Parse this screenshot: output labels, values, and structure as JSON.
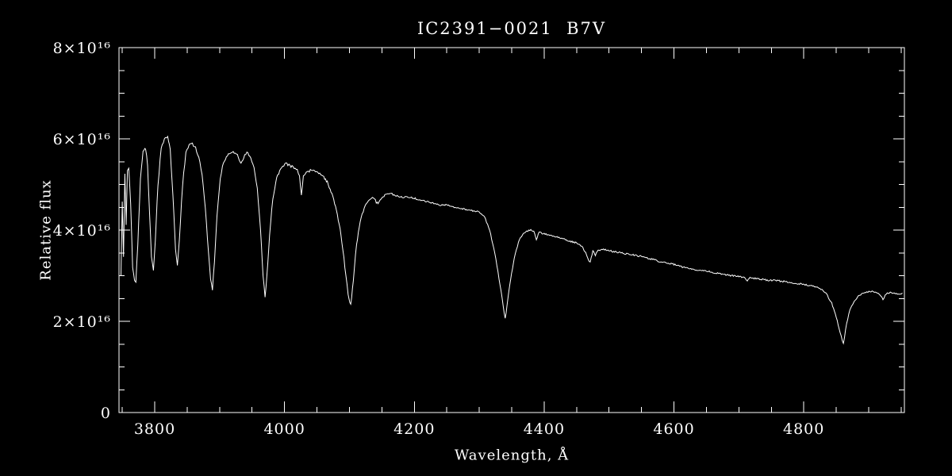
{
  "chart_data": {
    "type": "line",
    "title": "IC2391−0021  B7V",
    "xlabel": "Wavelength, Å",
    "ylabel": "Relative flux",
    "xlim": [
      3745,
      4955
    ],
    "ylim": [
      0,
      8
    ],
    "flux_scale_note": "flux point values are in units of 10^16 (axis shows n×10¹⁶)",
    "x_major_ticks": [
      3800,
      4000,
      4200,
      4400,
      4600,
      4800
    ],
    "x_tick_labels": [
      "3800",
      "4000",
      "4200",
      "4400",
      "4600",
      "4800"
    ],
    "x_minor_step": 50,
    "y_major_ticks": [
      0,
      2,
      4,
      6,
      8
    ],
    "y_tick_labels": [
      "0",
      "2×10¹⁶",
      "4×10¹⁶",
      "6×10¹⁶",
      "8×10¹⁶"
    ],
    "y_minor_step": 0.5,
    "grid": false,
    "legend": null,
    "line_color": "#ffffff",
    "axis_color": "#ffffff",
    "background_color": "#000000",
    "notable_absorption_lines": [
      3771,
      3798,
      3835,
      3889,
      3970,
      4026,
      4102,
      4340,
      4388,
      4471,
      4861,
      4922
    ],
    "points": [
      [
        3748,
        3.0
      ],
      [
        3750,
        4.6
      ],
      [
        3752,
        3.4
      ],
      [
        3754,
        5.25
      ],
      [
        3756,
        4.1
      ],
      [
        3758,
        5.3
      ],
      [
        3760,
        5.35
      ],
      [
        3763,
        4.6
      ],
      [
        3766,
        3.2
      ],
      [
        3769,
        2.9
      ],
      [
        3771,
        2.85
      ],
      [
        3774,
        3.7
      ],
      [
        3778,
        5.1
      ],
      [
        3782,
        5.7
      ],
      [
        3786,
        5.8
      ],
      [
        3789,
        5.45
      ],
      [
        3792,
        4.4
      ],
      [
        3795,
        3.4
      ],
      [
        3798,
        3.1
      ],
      [
        3801,
        3.8
      ],
      [
        3805,
        5.0
      ],
      [
        3810,
        5.8
      ],
      [
        3815,
        6.0
      ],
      [
        3820,
        6.05
      ],
      [
        3824,
        5.75
      ],
      [
        3828,
        4.8
      ],
      [
        3832,
        3.6
      ],
      [
        3835,
        3.2
      ],
      [
        3838,
        3.8
      ],
      [
        3843,
        5.0
      ],
      [
        3848,
        5.7
      ],
      [
        3853,
        5.85
      ],
      [
        3858,
        5.9
      ],
      [
        3863,
        5.8
      ],
      [
        3868,
        5.6
      ],
      [
        3873,
        5.2
      ],
      [
        3878,
        4.5
      ],
      [
        3883,
        3.5
      ],
      [
        3886,
        2.9
      ],
      [
        3889,
        2.7
      ],
      [
        3892,
        3.3
      ],
      [
        3896,
        4.3
      ],
      [
        3901,
        5.15
      ],
      [
        3906,
        5.5
      ],
      [
        3912,
        5.65
      ],
      [
        3918,
        5.7
      ],
      [
        3924,
        5.7
      ],
      [
        3929,
        5.6
      ],
      [
        3933,
        5.45
      ],
      [
        3937,
        5.6
      ],
      [
        3942,
        5.7
      ],
      [
        3948,
        5.6
      ],
      [
        3953,
        5.35
      ],
      [
        3958,
        4.9
      ],
      [
        3963,
        4.0
      ],
      [
        3967,
        3.0
      ],
      [
        3970,
        2.5
      ],
      [
        3973,
        3.0
      ],
      [
        3977,
        3.9
      ],
      [
        3982,
        4.7
      ],
      [
        3988,
        5.15
      ],
      [
        3994,
        5.35
      ],
      [
        4002,
        5.45
      ],
      [
        4010,
        5.4
      ],
      [
        4018,
        5.35
      ],
      [
        4023,
        5.2
      ],
      [
        4026,
        4.75
      ],
      [
        4029,
        5.2
      ],
      [
        4035,
        5.3
      ],
      [
        4043,
        5.3
      ],
      [
        4051,
        5.25
      ],
      [
        4059,
        5.2
      ],
      [
        4066,
        5.05
      ],
      [
        4073,
        4.8
      ],
      [
        4080,
        4.45
      ],
      [
        4087,
        3.9
      ],
      [
        4093,
        3.2
      ],
      [
        4098,
        2.6
      ],
      [
        4102,
        2.35
      ],
      [
        4106,
        2.9
      ],
      [
        4111,
        3.7
      ],
      [
        4118,
        4.3
      ],
      [
        4126,
        4.6
      ],
      [
        4134,
        4.7
      ],
      [
        4140,
        4.65
      ],
      [
        4144,
        4.55
      ],
      [
        4149,
        4.7
      ],
      [
        4156,
        4.78
      ],
      [
        4164,
        4.8
      ],
      [
        4172,
        4.75
      ],
      [
        4180,
        4.72
      ],
      [
        4190,
        4.73
      ],
      [
        4200,
        4.7
      ],
      [
        4210,
        4.65
      ],
      [
        4220,
        4.62
      ],
      [
        4230,
        4.58
      ],
      [
        4240,
        4.55
      ],
      [
        4250,
        4.55
      ],
      [
        4260,
        4.5
      ],
      [
        4270,
        4.48
      ],
      [
        4280,
        4.45
      ],
      [
        4290,
        4.42
      ],
      [
        4300,
        4.4
      ],
      [
        4308,
        4.3
      ],
      [
        4316,
        4.0
      ],
      [
        4324,
        3.5
      ],
      [
        4332,
        2.8
      ],
      [
        4340,
        2.05
      ],
      [
        4347,
        2.8
      ],
      [
        4354,
        3.4
      ],
      [
        4362,
        3.8
      ],
      [
        4370,
        3.95
      ],
      [
        4378,
        4.0
      ],
      [
        4384,
        3.98
      ],
      [
        4388,
        3.78
      ],
      [
        4392,
        3.95
      ],
      [
        4400,
        3.92
      ],
      [
        4410,
        3.88
      ],
      [
        4420,
        3.85
      ],
      [
        4430,
        3.8
      ],
      [
        4440,
        3.75
      ],
      [
        4450,
        3.72
      ],
      [
        4458,
        3.65
      ],
      [
        4464,
        3.5
      ],
      [
        4468,
        3.35
      ],
      [
        4471,
        3.3
      ],
      [
        4475,
        3.55
      ],
      [
        4479,
        3.45
      ],
      [
        4483,
        3.55
      ],
      [
        4490,
        3.58
      ],
      [
        4500,
        3.55
      ],
      [
        4510,
        3.52
      ],
      [
        4520,
        3.5
      ],
      [
        4530,
        3.47
      ],
      [
        4540,
        3.45
      ],
      [
        4550,
        3.42
      ],
      [
        4560,
        3.38
      ],
      [
        4570,
        3.35
      ],
      [
        4580,
        3.3
      ],
      [
        4590,
        3.28
      ],
      [
        4600,
        3.25
      ],
      [
        4610,
        3.2
      ],
      [
        4620,
        3.17
      ],
      [
        4630,
        3.14
      ],
      [
        4640,
        3.12
      ],
      [
        4650,
        3.1
      ],
      [
        4660,
        3.07
      ],
      [
        4670,
        3.04
      ],
      [
        4680,
        3.02
      ],
      [
        4690,
        3.0
      ],
      [
        4700,
        2.98
      ],
      [
        4710,
        2.95
      ],
      [
        4713,
        2.88
      ],
      [
        4717,
        2.95
      ],
      [
        4725,
        2.94
      ],
      [
        4735,
        2.92
      ],
      [
        4745,
        2.9
      ],
      [
        4755,
        2.9
      ],
      [
        4765,
        2.88
      ],
      [
        4775,
        2.86
      ],
      [
        4785,
        2.84
      ],
      [
        4795,
        2.82
      ],
      [
        4805,
        2.8
      ],
      [
        4815,
        2.77
      ],
      [
        4825,
        2.72
      ],
      [
        4835,
        2.6
      ],
      [
        4843,
        2.4
      ],
      [
        4850,
        2.1
      ],
      [
        4856,
        1.75
      ],
      [
        4861,
        1.5
      ],
      [
        4866,
        1.95
      ],
      [
        4871,
        2.25
      ],
      [
        4878,
        2.45
      ],
      [
        4886,
        2.58
      ],
      [
        4894,
        2.62
      ],
      [
        4902,
        2.65
      ],
      [
        4910,
        2.65
      ],
      [
        4916,
        2.6
      ],
      [
        4922,
        2.48
      ],
      [
        4927,
        2.6
      ],
      [
        4935,
        2.63
      ],
      [
        4944,
        2.6
      ],
      [
        4952,
        2.62
      ]
    ]
  }
}
